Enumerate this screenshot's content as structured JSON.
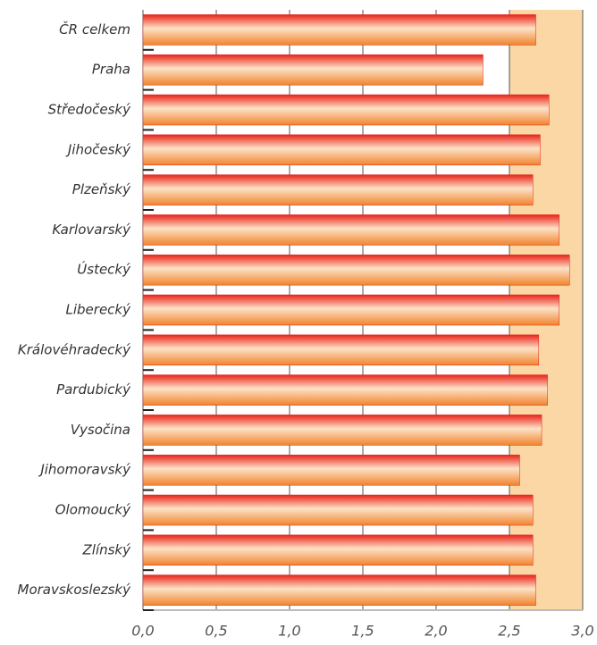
{
  "chart_data": {
    "type": "barh",
    "categories": [
      "ČR celkem",
      "Praha",
      "Středočeský",
      "Jihočeský",
      "Plzeňský",
      "Karlovarský",
      "Ústecký",
      "Liberecký",
      "Královéhradecký",
      "Pardubický",
      "Vysočina",
      "Jihomoravský",
      "Olomoucký",
      "Zlínský",
      "Moravskoslezský"
    ],
    "values": [
      2.68,
      2.32,
      2.77,
      2.71,
      2.66,
      2.84,
      2.91,
      2.84,
      2.7,
      2.76,
      2.72,
      2.57,
      2.66,
      2.66,
      2.68
    ],
    "xlim": [
      0,
      3
    ],
    "xticks": [
      {
        "value": 0,
        "label": "0,0"
      },
      {
        "value": 0.5,
        "label": "0,5"
      },
      {
        "value": 1,
        "label": "1,0"
      },
      {
        "value": 1.5,
        "label": "1,5"
      },
      {
        "value": 2,
        "label": "2,0"
      },
      {
        "value": 2.5,
        "label": "2,5"
      },
      {
        "value": 3,
        "label": "3,0"
      }
    ],
    "grid": true,
    "shaded_band": {
      "from": 2.5,
      "to": 3,
      "color": "#fbd7a6"
    },
    "color": "#e8231a"
  }
}
